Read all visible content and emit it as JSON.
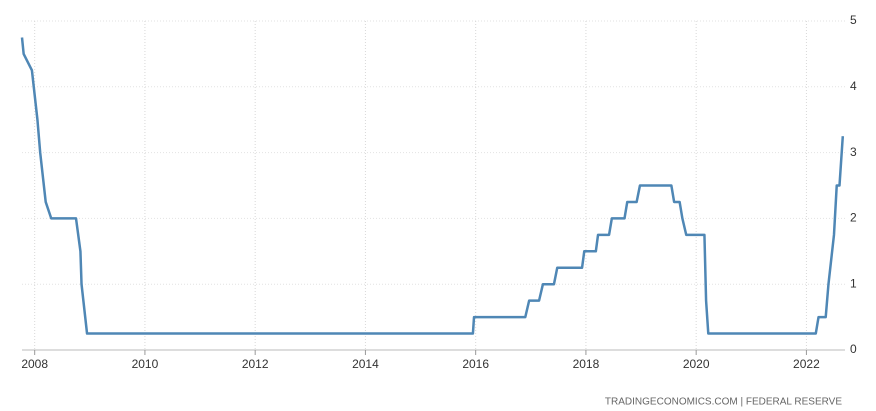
{
  "chart_data": {
    "type": "line",
    "x": [
      2007.77,
      2007.8,
      2007.95,
      2008.05,
      2008.1,
      2008.2,
      2008.3,
      2008.75,
      2008.83,
      2008.85,
      2008.95,
      2015.95,
      2015.97,
      2016.9,
      2016.97,
      2017.15,
      2017.22,
      2017.42,
      2017.48,
      2017.93,
      2017.97,
      2018.18,
      2018.22,
      2018.42,
      2018.47,
      2018.7,
      2018.75,
      2018.92,
      2018.98,
      2019.55,
      2019.6,
      2019.7,
      2019.75,
      2019.82,
      2020.15,
      2020.18,
      2020.22,
      2022.17,
      2022.22,
      2022.35,
      2022.4,
      2022.5,
      2022.55,
      2022.6,
      2022.66
    ],
    "series": [
      {
        "color": "#4f87b5",
        "values": [
          4.75,
          4.5,
          4.25,
          3.5,
          3.0,
          2.25,
          2.0,
          2.0,
          1.5,
          1.0,
          0.25,
          0.25,
          0.5,
          0.5,
          0.75,
          0.75,
          1.0,
          1.0,
          1.25,
          1.25,
          1.5,
          1.5,
          1.75,
          1.75,
          2.0,
          2.0,
          2.25,
          2.25,
          2.5,
          2.5,
          2.25,
          2.25,
          2.0,
          1.75,
          1.75,
          0.75,
          0.25,
          0.25,
          0.5,
          0.5,
          1.0,
          1.75,
          2.5,
          2.5,
          3.25
        ]
      }
    ],
    "xlim": [
      2007.77,
      2022.7
    ],
    "xticks": [
      2008,
      2010,
      2012,
      2014,
      2016,
      2018,
      2020,
      2022
    ],
    "ylim": [
      0,
      5
    ],
    "yticks": [
      0,
      1,
      2,
      3,
      4,
      5
    ],
    "grid": true,
    "source": "TRADINGECONOMICS.COM  |  FEDERAL RESERVE"
  }
}
